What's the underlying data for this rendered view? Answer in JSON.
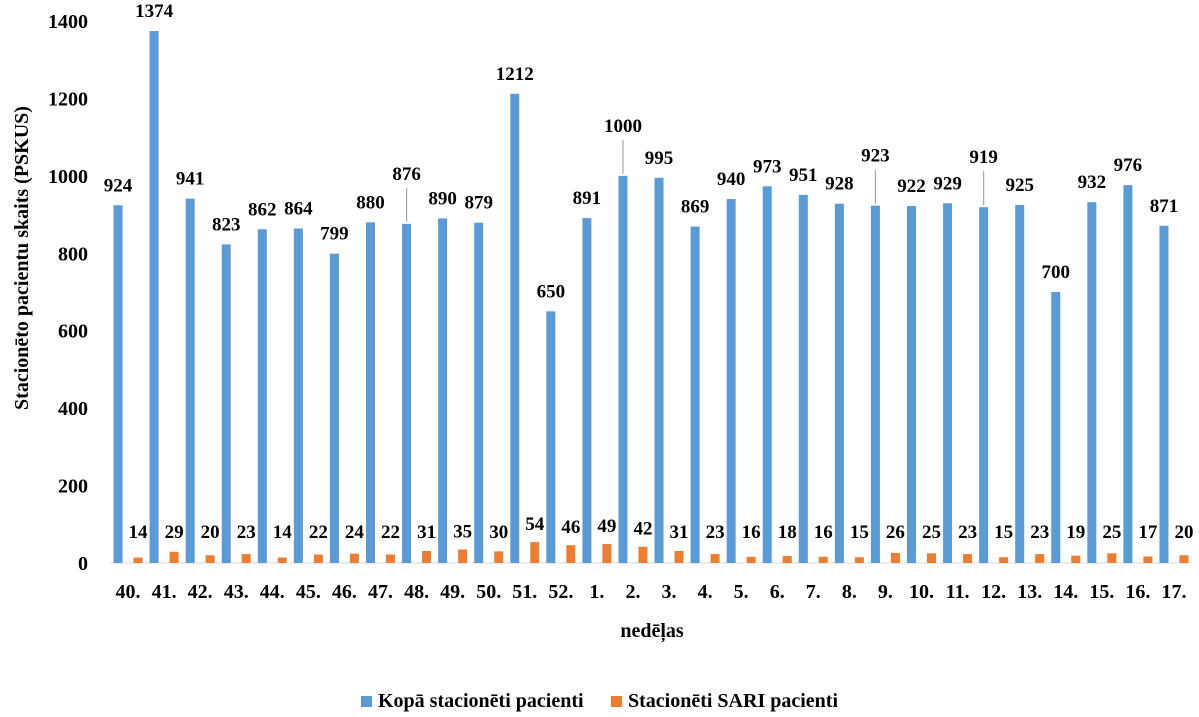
{
  "chart_data": {
    "type": "bar",
    "categories": [
      "40.",
      "41.",
      "42.",
      "43.",
      "44.",
      "45.",
      "46.",
      "47.",
      "48.",
      "49.",
      "50.",
      "51.",
      "52.",
      "1.",
      "2.",
      "3.",
      "4.",
      "5.",
      "6.",
      "7.",
      "8.",
      "9.",
      "10.",
      "11.",
      "12.",
      "13.",
      "14.",
      "15.",
      "16.",
      "17."
    ],
    "series": [
      {
        "name": "Kopā stacionēti pacienti",
        "color": "#5b9bd5",
        "values": [
          924,
          1374,
          941,
          823,
          862,
          864,
          799,
          880,
          876,
          890,
          879,
          1212,
          650,
          891,
          1000,
          995,
          869,
          940,
          973,
          951,
          928,
          923,
          922,
          929,
          919,
          925,
          700,
          932,
          976,
          871
        ]
      },
      {
        "name": "Stacionēti SARI pacienti",
        "color": "#ed7d31",
        "values": [
          14,
          29,
          20,
          23,
          14,
          22,
          24,
          22,
          31,
          35,
          30,
          54,
          46,
          49,
          42,
          31,
          23,
          16,
          18,
          16,
          15,
          26,
          25,
          23,
          15,
          23,
          19,
          25,
          17,
          20
        ]
      }
    ],
    "xlabel": "nedēļas",
    "ylabel": "Stacionēto pacientu skaits (PSKUS)",
    "ylim": [
      0,
      1400
    ],
    "yticks": [
      "0",
      "200",
      "400",
      "600",
      "800",
      "1000",
      "1200",
      "1400"
    ],
    "grid": false,
    "legend_position": "bottom"
  }
}
